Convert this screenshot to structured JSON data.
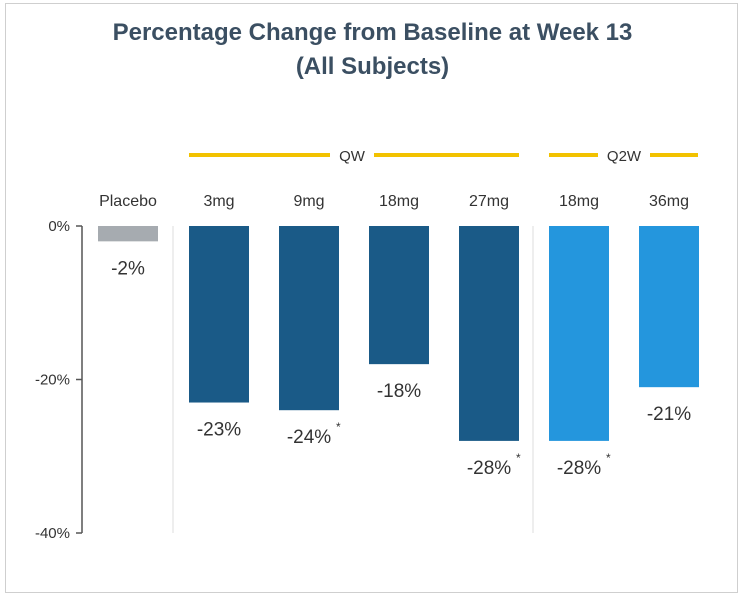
{
  "title_line1": "Percentage Change from Baseline at Week 13",
  "title_line2": "(All Subjects)",
  "colors": {
    "placebo": "#a6abb0",
    "qw": "#1a5a87",
    "q2w": "#2496dd",
    "group_line": "#f2c200",
    "axis": "#555555",
    "title": "#3b4f62"
  },
  "chart_data": {
    "type": "bar",
    "title": "Percentage Change from Baseline at Week 13 (All Subjects)",
    "xlabel": "",
    "ylabel": "",
    "ylim": [
      -40,
      0
    ],
    "yticks": [
      "0%",
      "-20%",
      "-40%"
    ],
    "grid": false,
    "groups": [
      {
        "label": "",
        "categories": [
          "Placebo"
        ]
      },
      {
        "label": "QW",
        "categories": [
          "3mg",
          "9mg",
          "18mg",
          "27mg"
        ]
      },
      {
        "label": "Q2W",
        "categories": [
          "18mg",
          "36mg"
        ]
      }
    ],
    "categories": [
      "Placebo",
      "3mg",
      "9mg",
      "18mg",
      "27mg",
      "18mg",
      "36mg"
    ],
    "values": [
      -2,
      -23,
      -24,
      -18,
      -28,
      -28,
      -21
    ],
    "labels": [
      "-2%",
      "-23%",
      "-24%",
      "-18%",
      "-28%",
      "-28%",
      "-21%"
    ],
    "significant": [
      false,
      false,
      true,
      false,
      true,
      true,
      false
    ],
    "marker": "*",
    "bar_groups": [
      "placebo",
      "qw",
      "qw",
      "qw",
      "qw",
      "q2w",
      "q2w"
    ]
  }
}
